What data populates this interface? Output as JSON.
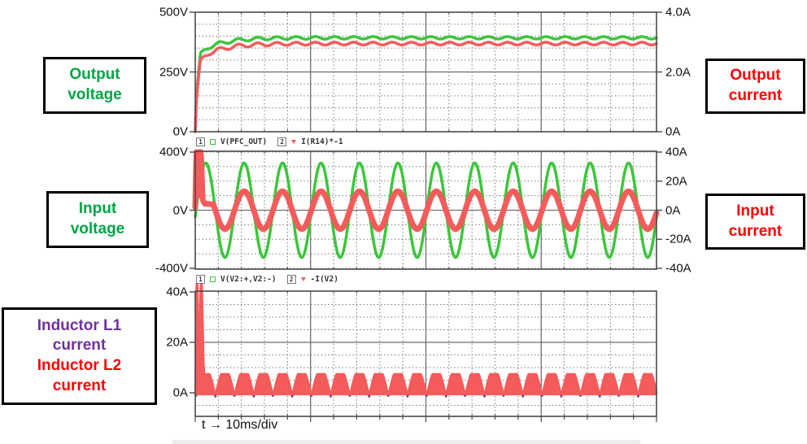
{
  "colors": {
    "trace_green": "#3CC63C",
    "trace_red": "#F45B5B",
    "trace_purple": "#7030A0",
    "label_green": "#00A546",
    "label_red": "#FF0000",
    "grid_minor": "#777777",
    "grid_major": "#6e6e6e",
    "frame": "#4a4a4a"
  },
  "side_labels": {
    "output_voltage": {
      "lines": [
        "Output",
        "voltage"
      ],
      "color": "#00A546"
    },
    "output_current": {
      "lines": [
        "Output",
        "current"
      ],
      "color": "#FF0000"
    },
    "input_voltage": {
      "lines": [
        "Input",
        "voltage"
      ],
      "color": "#00A546"
    },
    "input_current": {
      "lines": [
        "Input",
        "current"
      ],
      "color": "#FF0000"
    },
    "inductor": {
      "lines": [
        {
          "text": "Inductor L1",
          "color": "#7030A0"
        },
        {
          "text": "current",
          "color": "#7030A0"
        },
        {
          "text": "Inductor L2",
          "color": "#FF0000"
        },
        {
          "text": "current",
          "color": "#FF0000"
        }
      ]
    }
  },
  "time_axis_label": "t → 10ms/div",
  "chart_data": [
    {
      "type": "line",
      "name": "output-voltage-and-current",
      "x_total_ms": 200,
      "x_minor_div_ms": 10,
      "x_major_div_ms": 50,
      "left_axis": {
        "unit": "V",
        "range": [
          0,
          500
        ],
        "minor_step": 50
      },
      "right_axis": {
        "unit": "A",
        "range": [
          0,
          4
        ],
        "minor_step": 0.5
      },
      "left_ticks": [
        {
          "v": 500,
          "label": "500V"
        },
        {
          "v": 250,
          "label": "250V"
        },
        {
          "v": 0,
          "label": "0V"
        }
      ],
      "right_ticks": [
        {
          "v": 4,
          "label": "4.0A"
        },
        {
          "v": 2,
          "label": "2.0A"
        },
        {
          "v": 0,
          "label": "0A"
        }
      ],
      "legend": [
        {
          "num": "1",
          "marker": "square",
          "label": "V(PFC_OUT)"
        },
        {
          "num": "2",
          "marker": "triangle",
          "label": "I(R14)*-1"
        }
      ],
      "series": [
        {
          "name": "V(PFC_OUT)",
          "axis": "left",
          "color": "#3CC63C",
          "width": 3.5,
          "gen": {
            "kind": "pfc",
            "ramp_ms": 2.3,
            "ramp_to": 332,
            "steady": 393,
            "tau_ms": 9,
            "ripple_hz": 120,
            "ripple_amp": 5,
            "ripple_extra": 4,
            "extra_tau_ms": 25
          }
        },
        {
          "name": "I(R14)*-1",
          "axis": "right",
          "color": "#F45B5B",
          "width": 3.5,
          "gen": {
            "kind": "pfc",
            "ramp_ms": 2.3,
            "ramp_to": 2.44,
            "steady": 2.95,
            "tau_ms": 9,
            "ripple_hz": 120,
            "ripple_amp": 0.045,
            "ripple_extra": 0.035,
            "extra_tau_ms": 25
          }
        }
      ]
    },
    {
      "type": "line",
      "name": "input-voltage-and-current",
      "x_total_ms": 200,
      "x_minor_div_ms": 10,
      "x_major_div_ms": 50,
      "left_axis": {
        "unit": "V",
        "range": [
          -400,
          400
        ],
        "minor_step": 100
      },
      "right_axis": {
        "unit": "A",
        "range": [
          -40,
          40
        ],
        "minor_step": 10
      },
      "left_ticks": [
        {
          "v": 400,
          "label": "400V"
        },
        {
          "v": 0,
          "label": "0V"
        },
        {
          "v": -400,
          "label": "-400V"
        }
      ],
      "right_ticks": [
        {
          "v": 40,
          "label": "40A"
        },
        {
          "v": 20,
          "label": "20A"
        },
        {
          "v": 0,
          "label": "0A"
        },
        {
          "v": -20,
          "label": "-20A"
        },
        {
          "v": -40,
          "label": "-40A"
        }
      ],
      "legend": [
        {
          "num": "1",
          "marker": "square",
          "label": "V(V2:+,V2:-)"
        },
        {
          "num": "2",
          "marker": "triangle",
          "label": "-I(V2)"
        }
      ],
      "series": [
        {
          "name": "V(V2:+,V2:-)",
          "axis": "left",
          "color": "#3CC63C",
          "width": 3.5,
          "gen": {
            "kind": "sine",
            "amp": 325,
            "freq_hz": 60,
            "phase_deg": -8
          }
        },
        {
          "name": "-I(V2)",
          "axis": "right",
          "color": "#F45B5B",
          "width": 7,
          "gen": {
            "kind": "sine",
            "amp": 13,
            "freq_hz": 60,
            "phase_deg": -8,
            "cap": 40.5,
            "transient": [
              [
                0,
                2
              ],
              [
                0.4,
                40
              ],
              [
                0.9,
                40
              ],
              [
                1.3,
                9
              ],
              [
                1.8,
                40
              ],
              [
                2.5,
                40
              ],
              [
                3.2,
                7
              ],
              [
                4.2,
                4.5
              ],
              [
                8.0,
                4
              ]
            ]
          }
        }
      ]
    },
    {
      "type": "line",
      "name": "inductor-currents",
      "x_total_ms": 200,
      "x_minor_div_ms": 10,
      "x_major_div_ms": 50,
      "left_axis": {
        "unit": "A",
        "range": [
          -10,
          40
        ],
        "minor_step": 5
      },
      "left_ticks": [
        {
          "v": 40,
          "label": "40A"
        },
        {
          "v": 20,
          "label": "20A"
        },
        {
          "v": 0,
          "label": "0A"
        }
      ],
      "right_ticks": [],
      "legend": [],
      "series": [
        {
          "name": "Inductor L1 current",
          "axis": "left",
          "color": "#7030A0",
          "width": 2.5,
          "gen": {
            "kind": "humps",
            "base": -1.6,
            "k": 10.3,
            "flat": 8.2,
            "freq_hz": 60,
            "phase_deg": -8
          }
        },
        {
          "name": "Inductor L2 current",
          "axis": "left",
          "color": "#F45B5B",
          "width": 2,
          "fill": true,
          "gen": {
            "kind": "humps",
            "base": -0.7,
            "k": 10.5,
            "flat": 8.2,
            "freq_hz": 60,
            "phase_deg": -8,
            "cap": 43.5,
            "transient": [
              [
                0,
                0.5
              ],
              [
                0.3,
                43.5
              ],
              [
                1.1,
                43.5
              ],
              [
                1.6,
                10
              ],
              [
                2.2,
                43.5
              ],
              [
                3.0,
                43.5
              ],
              [
                3.8,
                7.5
              ]
            ]
          }
        }
      ]
    }
  ]
}
